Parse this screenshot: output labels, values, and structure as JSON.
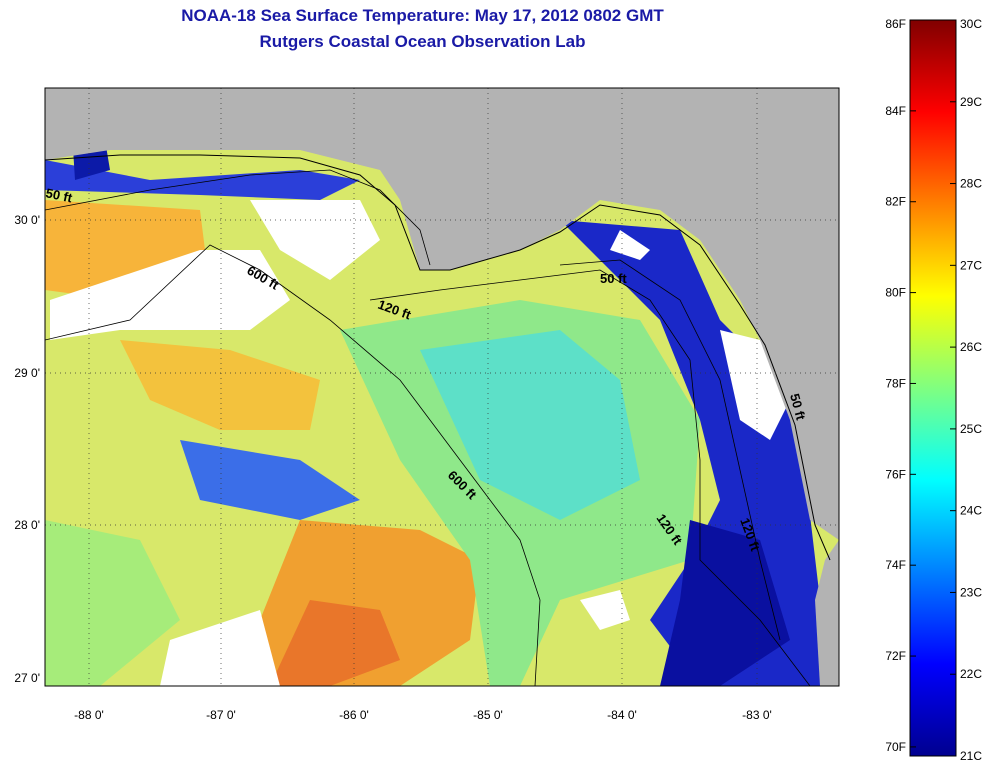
{
  "title": "NOAA-18 Sea Surface Temperature:  May 17, 2012 0802 GMT",
  "subtitle": "Rutgers Coastal Ocean Observation Lab",
  "lat_ticks": [
    "30 0'",
    "29 0'",
    "28 0'",
    "27 0'"
  ],
  "lon_ticks": [
    "-88 0'",
    "-87 0'",
    "-86 0'",
    "-85 0'",
    "-84 0'",
    "-83 0'"
  ],
  "contour_labels": [
    "50 ft",
    "600 ft",
    "120 ft",
    "50 ft",
    "600 ft",
    "120 ft",
    "120 ft",
    "50 ft"
  ],
  "colorbar": {
    "fahrenheit": [
      "86F",
      "84F",
      "82F",
      "80F",
      "78F",
      "76F",
      "74F",
      "72F",
      "70F"
    ],
    "celsius": [
      "30C",
      "29C",
      "28C",
      "27C",
      "26C",
      "25C",
      "24C",
      "23C",
      "22C",
      "21C"
    ],
    "min_c": 21,
    "max_c": 30,
    "colormap": "jet"
  },
  "colors": {
    "land": "#b3b3b3",
    "no_data": "#ffffff",
    "title": "#1a1aa6"
  }
}
